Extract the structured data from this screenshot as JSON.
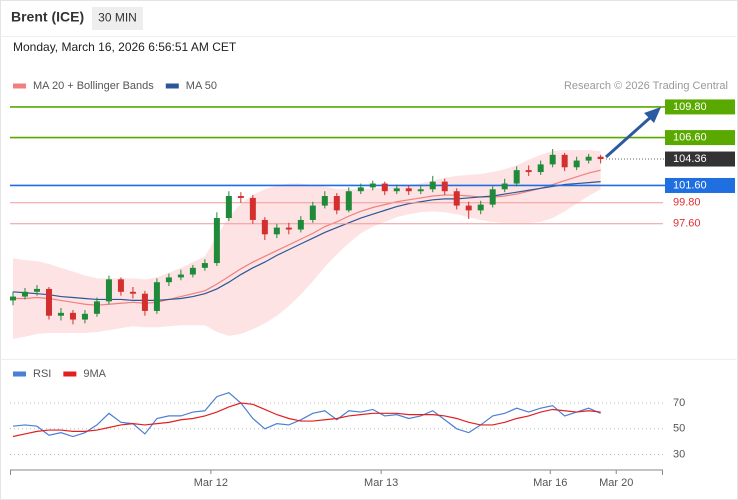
{
  "header": {
    "symbol": "Brent (ICE)",
    "interval": "30 MIN",
    "timestamp": "Monday, March 16, 2026 6:56:51 AM CET",
    "source": "Research © 2026 Trading Central"
  },
  "chart_data": [
    {
      "type": "candlestick",
      "xlim": [
        -0.25,
        54.2
      ],
      "ylim": [
        83.9,
        114.7
      ],
      "up_color": "#1f8a3a",
      "down_color": "#d32f2f",
      "open": [
        89.6,
        90.0,
        90.5,
        90.8,
        88.0,
        88.3,
        87.6,
        88.2,
        89.5,
        91.8,
        90.5,
        90.3,
        88.5,
        91.5,
        92.0,
        92.3,
        93.0,
        93.5,
        98.2,
        100.5,
        100.3,
        98.0,
        96.5,
        97.2,
        97.0,
        98.0,
        99.5,
        100.5,
        99.0,
        101.0,
        101.4,
        101.8,
        101.0,
        101.3,
        101.0,
        101.2,
        102.0,
        101.0,
        99.5,
        99.0,
        99.6,
        101.2,
        101.8,
        103.2,
        103.0,
        103.8,
        104.8,
        103.5,
        104.2,
        104.6
      ],
      "high": [
        90.5,
        90.9,
        91.2,
        91.0,
        88.8,
        88.6,
        88.6,
        89.9,
        92.2,
        92.0,
        91.0,
        90.6,
        91.9,
        92.4,
        92.8,
        93.3,
        93.9,
        98.8,
        101.0,
        100.9,
        100.6,
        98.3,
        97.6,
        97.7,
        98.4,
        99.9,
        101.0,
        100.8,
        101.4,
        101.8,
        102.1,
        102.0,
        101.7,
        101.6,
        101.6,
        102.6,
        102.3,
        101.3,
        99.9,
        100.0,
        101.5,
        102.3,
        103.6,
        103.7,
        104.2,
        105.4,
        105.0,
        104.6,
        104.9,
        104.8
      ],
      "low": [
        89.1,
        89.7,
        90.1,
        87.6,
        87.5,
        87.1,
        87.2,
        87.9,
        89.2,
        90.1,
        89.8,
        88.0,
        88.2,
        91.1,
        91.7,
        92.0,
        92.7,
        93.2,
        97.9,
        99.8,
        97.6,
        95.9,
        96.1,
        96.5,
        96.7,
        97.7,
        99.2,
        98.6,
        98.8,
        100.7,
        101.1,
        100.6,
        100.7,
        100.6,
        100.7,
        100.9,
        100.6,
        99.1,
        98.1,
        98.6,
        99.3,
        100.9,
        101.5,
        102.6,
        102.7,
        103.5,
        103.1,
        103.2,
        103.9,
        103.9
      ],
      "close": [
        90.0,
        90.5,
        90.8,
        88.0,
        88.3,
        87.6,
        88.2,
        89.5,
        91.8,
        90.5,
        90.3,
        88.5,
        91.5,
        92.0,
        92.3,
        93.0,
        93.5,
        98.2,
        100.5,
        100.3,
        98.0,
        96.5,
        97.2,
        97.0,
        98.0,
        99.5,
        100.5,
        99.0,
        101.0,
        101.4,
        101.8,
        101.0,
        101.3,
        101.0,
        101.2,
        102.0,
        101.0,
        99.5,
        99.0,
        99.6,
        101.2,
        101.8,
        103.2,
        103.0,
        103.8,
        104.8,
        103.5,
        104.2,
        104.6,
        104.36
      ],
      "series": [
        {
          "name": "MA 20 + Bollinger Bands",
          "color": "#f08080",
          "band_color": "#fde3e3",
          "values": [
            89.8,
            89.8,
            89.9,
            89.8,
            89.6,
            89.4,
            89.2,
            89.1,
            89.2,
            89.3,
            89.4,
            89.3,
            89.4,
            89.7,
            90.0,
            90.3,
            90.6,
            91.3,
            92.1,
            92.9,
            93.6,
            94.2,
            94.8,
            95.4,
            96.0,
            96.6,
            97.3,
            97.8,
            98.4,
            98.9,
            99.3,
            99.6,
            99.9,
            100.1,
            100.3,
            100.5,
            100.6,
            100.6,
            100.5,
            100.4,
            100.4,
            100.5,
            100.7,
            101.0,
            101.3,
            101.7,
            102.1,
            102.5,
            102.9,
            103.2
          ],
          "upper": [
            94.0,
            93.8,
            93.7,
            93.4,
            93.0,
            92.6,
            92.2,
            91.9,
            91.9,
            91.9,
            91.9,
            91.8,
            92.0,
            92.5,
            93.0,
            93.6,
            94.2,
            96.3,
            98.3,
            99.7,
            100.6,
            101.2,
            101.6,
            101.8,
            101.8,
            101.6,
            101.5,
            101.2,
            101.2,
            101.2,
            101.3,
            101.4,
            101.5,
            101.6,
            101.8,
            102.1,
            102.4,
            102.6,
            102.7,
            102.8,
            103.0,
            103.3,
            103.7,
            104.3,
            104.8,
            105.2,
            105.3,
            105.3,
            105.3,
            105.2
          ],
          "lower": [
            85.6,
            85.8,
            86.1,
            86.2,
            86.2,
            86.2,
            86.2,
            86.3,
            86.5,
            86.7,
            86.9,
            86.8,
            86.8,
            86.9,
            87.0,
            87.0,
            87.0,
            86.3,
            85.9,
            86.1,
            86.6,
            87.2,
            88.0,
            89.0,
            90.2,
            91.6,
            93.1,
            94.4,
            95.6,
            96.6,
            97.3,
            97.8,
            98.3,
            98.6,
            98.8,
            98.9,
            98.8,
            98.6,
            98.3,
            98.0,
            97.8,
            97.7,
            97.7,
            97.7,
            97.8,
            98.2,
            98.9,
            99.7,
            100.5,
            101.2
          ]
        },
        {
          "name": "MA 50",
          "color": "#2b5797",
          "values": [
            90.5,
            90.4,
            90.3,
            90.2,
            90.0,
            89.9,
            89.8,
            89.7,
            89.7,
            89.7,
            89.6,
            89.6,
            89.6,
            89.7,
            89.8,
            90.0,
            90.3,
            90.8,
            91.5,
            92.3,
            93.0,
            93.6,
            94.3,
            94.9,
            95.5,
            96.1,
            96.7,
            97.2,
            97.7,
            98.2,
            98.6,
            99.0,
            99.4,
            99.7,
            99.9,
            100.1,
            100.2,
            100.2,
            100.3,
            100.4,
            100.5,
            100.7,
            100.9,
            101.1,
            101.3,
            101.5,
            101.7,
            101.8,
            101.9,
            102.0
          ]
        }
      ],
      "levels": [
        {
          "value": 109.8,
          "label": "109.80",
          "color": "#5aa900",
          "kind": "box"
        },
        {
          "value": 106.6,
          "label": "106.60",
          "color": "#5aa900",
          "kind": "box"
        },
        {
          "value": 104.36,
          "color": "#333333",
          "kind": "dotted"
        },
        {
          "value": 101.6,
          "label": "101.60",
          "color": "#1f6fe0",
          "kind": "box"
        },
        {
          "value": 99.8,
          "label": "99.80",
          "color": "#e03030",
          "kind": "text"
        },
        {
          "value": 97.6,
          "label": "97.60",
          "color": "#e03030",
          "kind": "text"
        }
      ]
    },
    {
      "type": "line",
      "xlim": [
        -0.25,
        54.2
      ],
      "ylim": [
        18,
        84
      ],
      "yticks": [
        30,
        50,
        70
      ],
      "xticks": [
        {
          "value": 16.5,
          "label": "Mar 12"
        },
        {
          "value": 30.7,
          "label": "Mar 13"
        },
        {
          "value": 44.8,
          "label": "Mar 16"
        },
        {
          "value": 50.3,
          "label": "Mar 20"
        }
      ],
      "series": [
        {
          "name": "RSI",
          "color": "#4a7fd4",
          "values": [
            52,
            53,
            52,
            45,
            47,
            44,
            47,
            53,
            62,
            55,
            54,
            46,
            58,
            60,
            60,
            63,
            64,
            75,
            78,
            70,
            58,
            50,
            54,
            53,
            57,
            62,
            64,
            57,
            64,
            63,
            65,
            60,
            61,
            58,
            60,
            64,
            57,
            50,
            47,
            53,
            60,
            62,
            66,
            63,
            66,
            68,
            60,
            63,
            66,
            62
          ]
        },
        {
          "name": "9MA",
          "color": "#e02020",
          "values": [
            44,
            46,
            48,
            49,
            49,
            48,
            48,
            49,
            51,
            53,
            54,
            53,
            54,
            55,
            57,
            58,
            60,
            63,
            67,
            70,
            69,
            65,
            61,
            58,
            56,
            56,
            57,
            58,
            60,
            61,
            62,
            62,
            62,
            61,
            61,
            61,
            60,
            58,
            55,
            53,
            53,
            55,
            58,
            60,
            63,
            65,
            64,
            63,
            64,
            63
          ]
        }
      ]
    }
  ]
}
